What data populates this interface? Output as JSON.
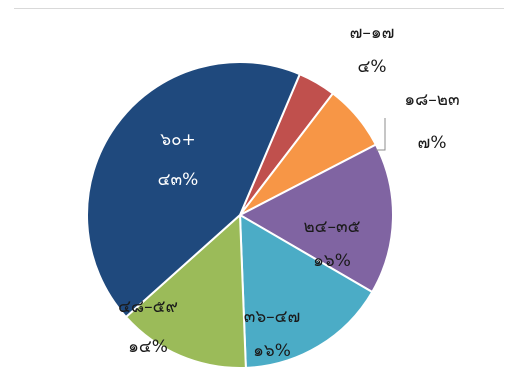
{
  "chart_data": {
    "type": "pie",
    "title": "",
    "slices": [
      {
        "label": "๗–๑๗",
        "value": 4,
        "value_label": "๔%",
        "color": "#C0504D"
      },
      {
        "label": "๑๘–๒๓",
        "value": 7,
        "value_label": "๗%",
        "color": "#F79646"
      },
      {
        "label": "๒๔–๓๕",
        "value": 16,
        "value_label": "๑๖%",
        "color": "#8064A2"
      },
      {
        "label": "๓๖–๔๗",
        "value": 16,
        "value_label": "๑๖%",
        "color": "#4BACC6"
      },
      {
        "label": "๔๘–๕๙",
        "value": 14,
        "value_label": "๑๔%",
        "color": "#9BBB59"
      },
      {
        "label": "๖๐+",
        "value": 43,
        "value_label": "๔๓%",
        "color": "#1F497D"
      }
    ],
    "start_angle_deg": 23,
    "direction": "clockwise",
    "legend": "none"
  }
}
